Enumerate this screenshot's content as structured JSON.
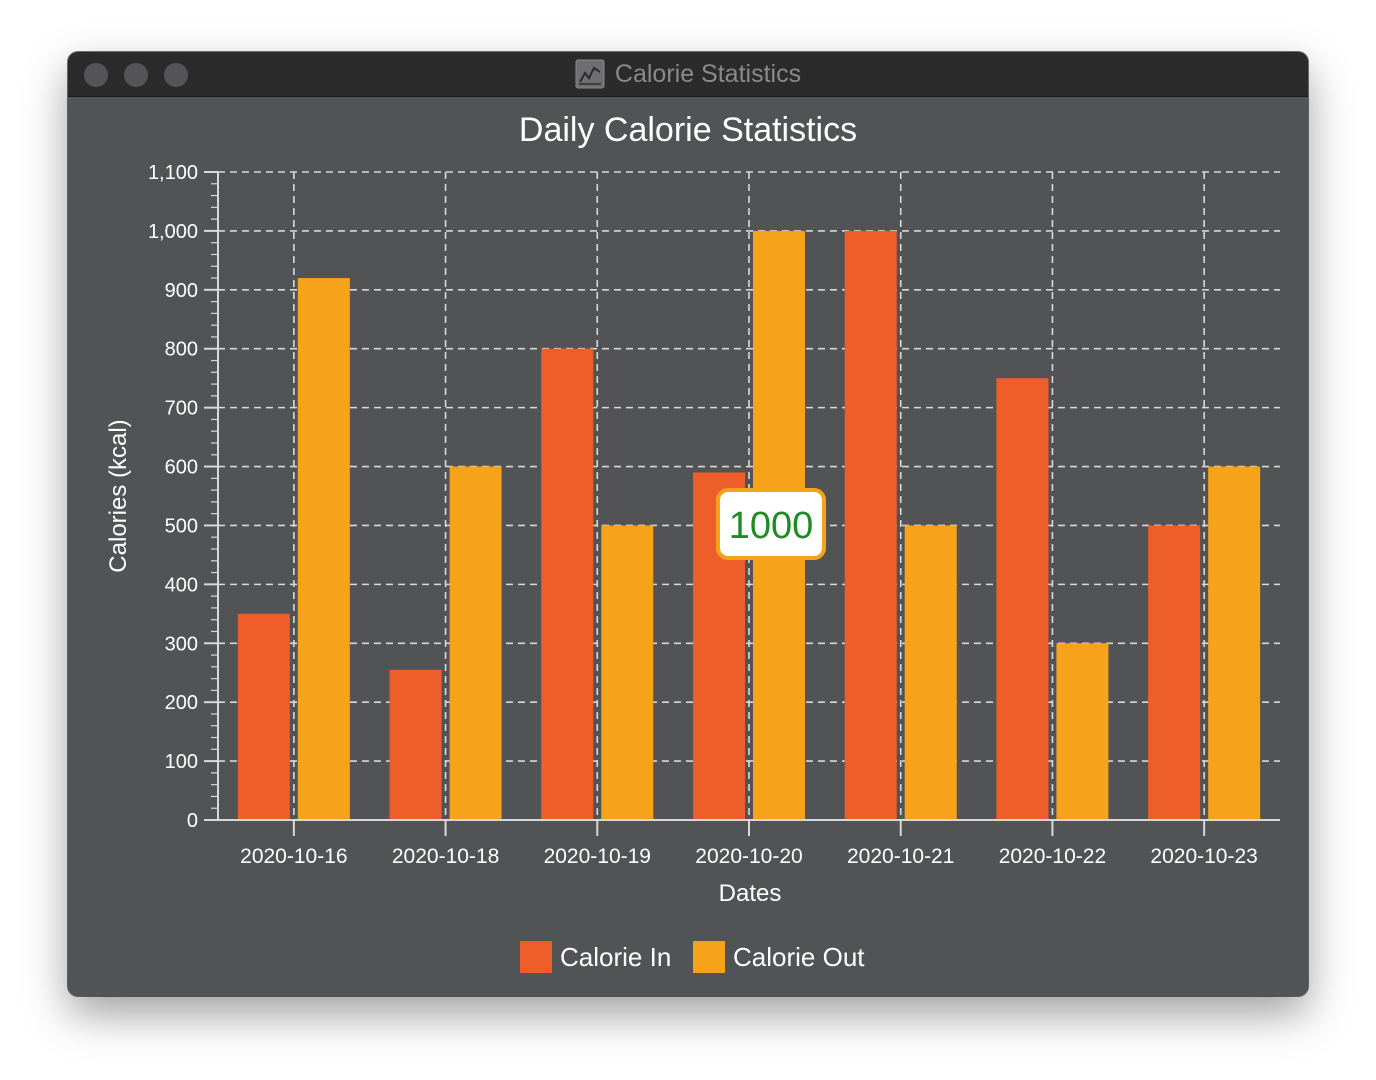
{
  "window": {
    "title": "Calorie Statistics",
    "icon": "line-chart-icon"
  },
  "colors": {
    "calorie_in": "#ee5e2b",
    "calorie_out": "#f6a21b",
    "background": "#525355",
    "text": "#ffffff",
    "grid": "#d8d8d8",
    "tooltip_text": "#1f8b24",
    "tooltip_border": "#f6a21b"
  },
  "tooltip": {
    "text": "1000"
  },
  "chart_data": {
    "type": "bar",
    "title": "Daily Calorie Statistics",
    "xlabel": "Dates",
    "ylabel": "Calories (kcal)",
    "categories": [
      "2020-10-16",
      "2020-10-18",
      "2020-10-19",
      "2020-10-20",
      "2020-10-21",
      "2020-10-22",
      "2020-10-23"
    ],
    "series": [
      {
        "name": "Calorie In",
        "values": [
          350,
          255,
          800,
          590,
          1000,
          750,
          500
        ]
      },
      {
        "name": "Calorie Out",
        "values": [
          920,
          600,
          500,
          1000,
          500,
          300,
          600
        ]
      }
    ],
    "ylim": [
      0,
      1100
    ],
    "yticks": [
      0,
      100,
      200,
      300,
      400,
      500,
      600,
      700,
      800,
      900,
      1000,
      1100
    ],
    "ytick_labels": [
      "0",
      "100",
      "200",
      "300",
      "400",
      "500",
      "600",
      "700",
      "800",
      "900",
      "1,000",
      "1,100"
    ],
    "grid": true,
    "legend": "bottom-center"
  }
}
